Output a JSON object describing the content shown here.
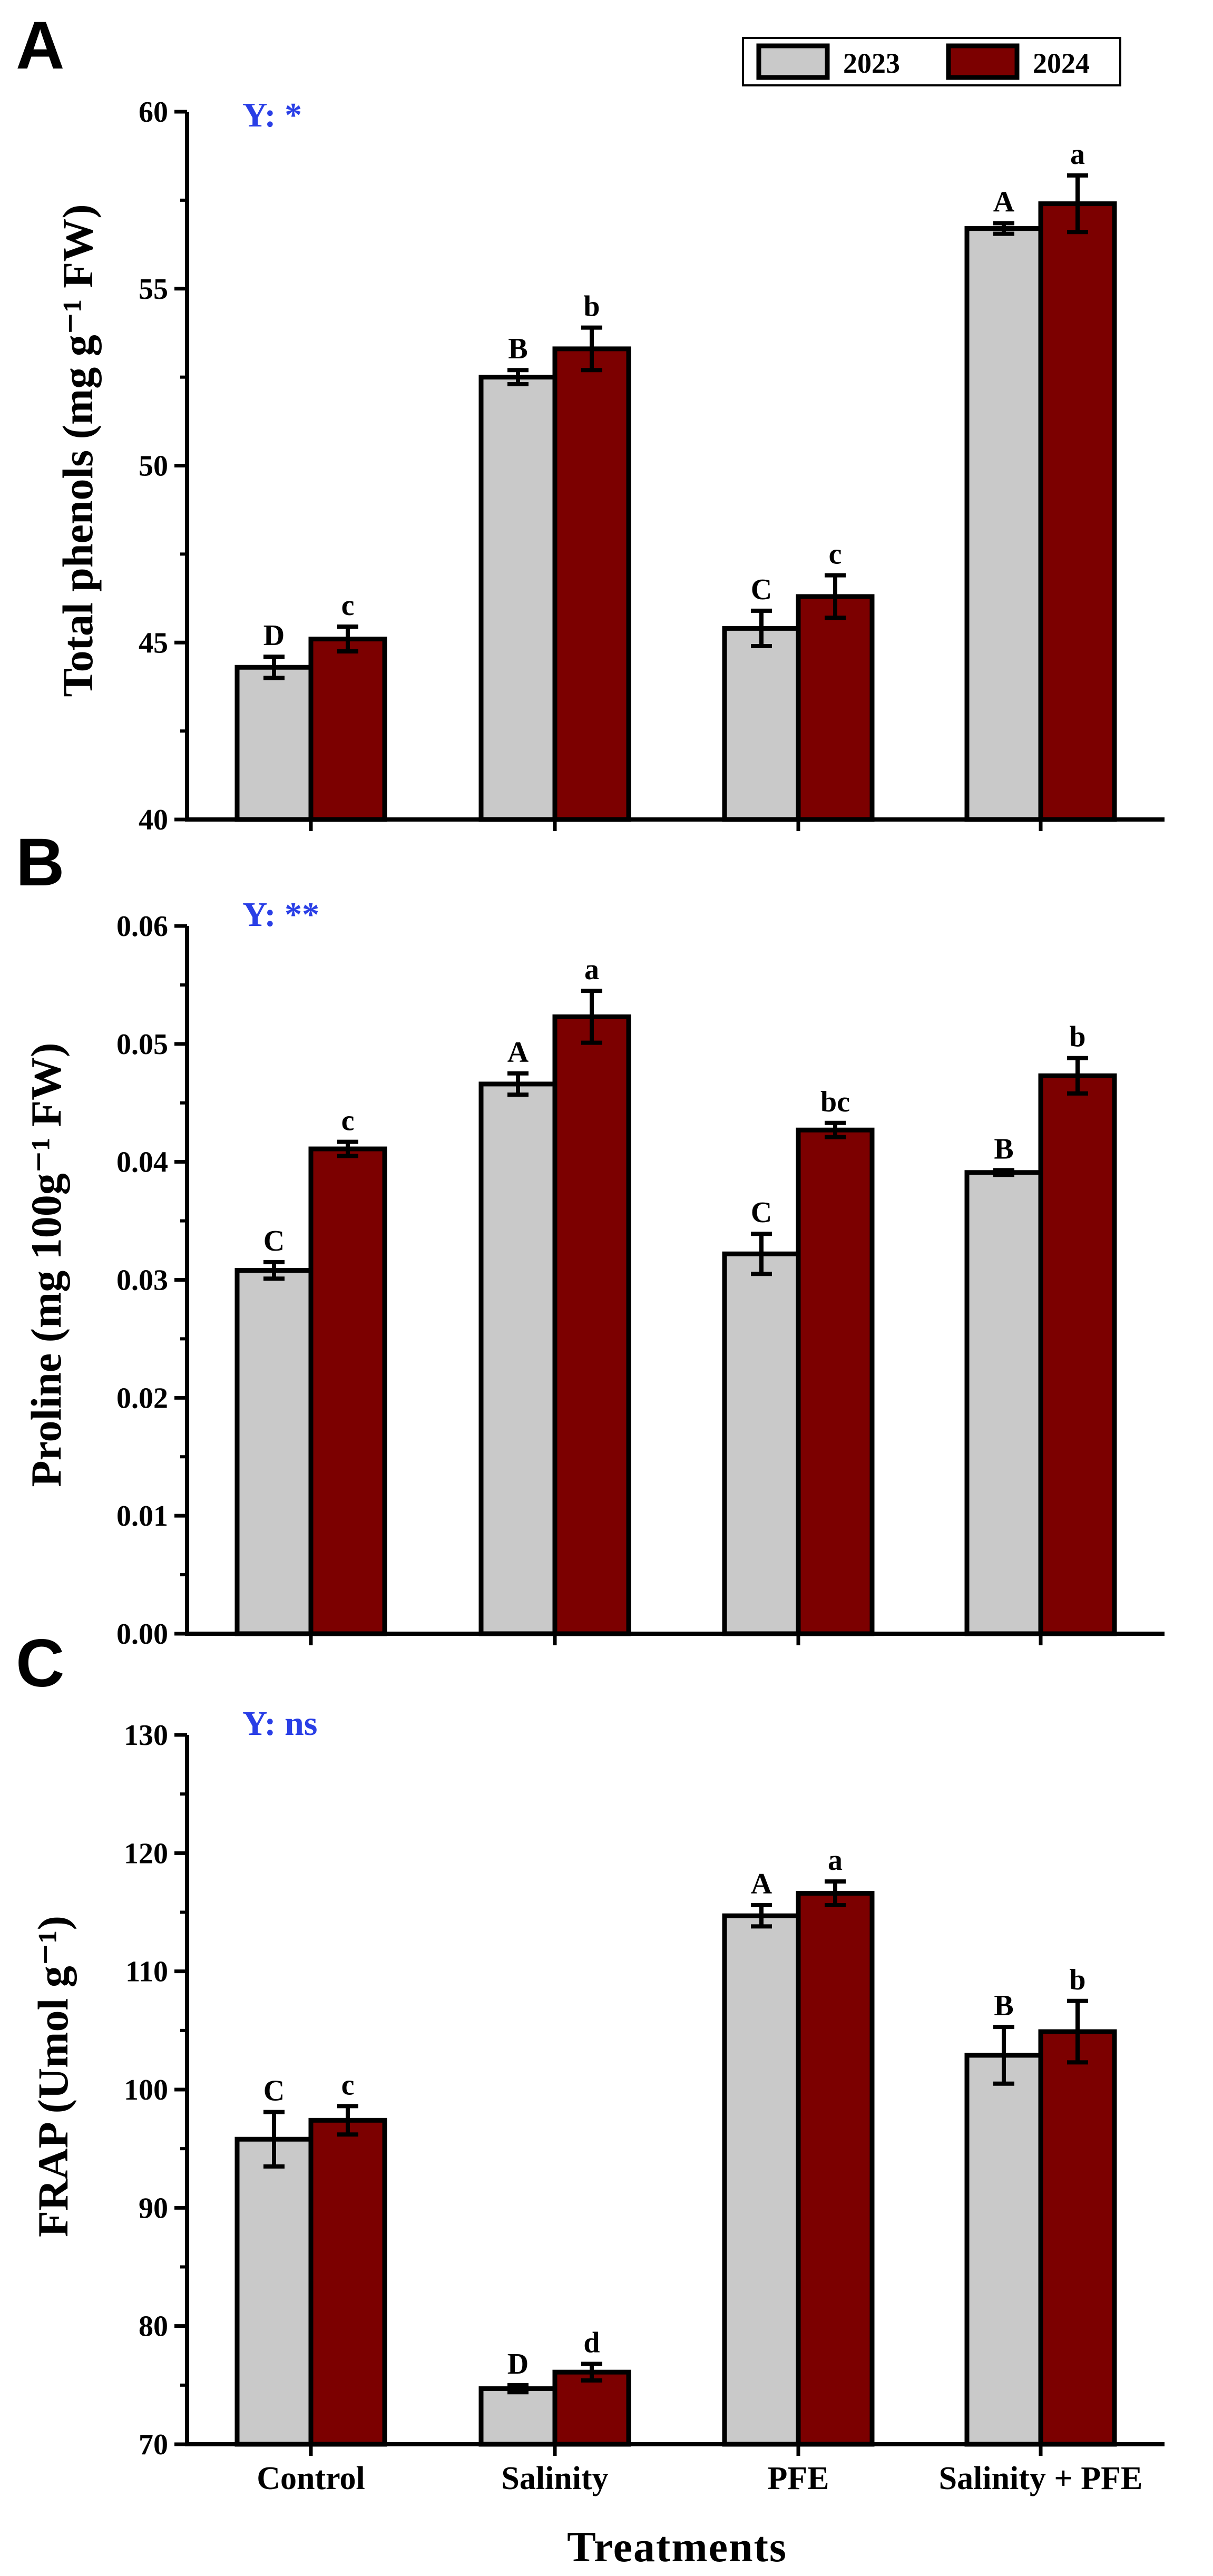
{
  "colors": {
    "s2023": "#c9c9c9",
    "s2024": "#7c0000",
    "annotation": "#2a3fe6"
  },
  "legend": {
    "items": [
      "2023",
      "2024"
    ]
  },
  "xaxis": {
    "title": "Treatments"
  },
  "chart_data": [
    {
      "type": "bar",
      "panel": "A",
      "ylabel": "Total phenols (mg g⁻¹ FW)",
      "annotation": "Y: *",
      "categories": [
        "Control",
        "Salinity",
        "PFE",
        "Salinity + PFE"
      ],
      "ylim": [
        40,
        60
      ],
      "yticks": [
        "40",
        "45",
        "50",
        "55",
        "60"
      ],
      "series": [
        {
          "name": "2023",
          "values": [
            44.3,
            52.5,
            45.4,
            56.7
          ],
          "errors": [
            0.3,
            0.2,
            0.5,
            0.15
          ],
          "letters": [
            "D",
            "B",
            "C",
            "A"
          ]
        },
        {
          "name": "2024",
          "values": [
            45.1,
            53.3,
            46.3,
            57.4
          ],
          "errors": [
            0.35,
            0.6,
            0.6,
            0.8
          ],
          "letters": [
            "c",
            "b",
            "c",
            "a"
          ]
        }
      ]
    },
    {
      "type": "bar",
      "panel": "B",
      "ylabel": "Proline (mg 100g⁻¹ FW)",
      "annotation": "Y: **",
      "categories": [
        "Control",
        "Salinity",
        "PFE",
        "Salinity + PFE"
      ],
      "ylim": [
        0,
        0.06
      ],
      "yticks": [
        "0.00",
        "0.01",
        "0.02",
        "0.03",
        "0.04",
        "0.05",
        "0.06"
      ],
      "series": [
        {
          "name": "2023",
          "values": [
            0.0308,
            0.0466,
            0.0322,
            0.0391
          ],
          "errors": [
            0.0007,
            0.0009,
            0.0017,
            0.0002
          ],
          "letters": [
            "C",
            "A",
            "C",
            "B"
          ]
        },
        {
          "name": "2024",
          "values": [
            0.0411,
            0.0523,
            0.0427,
            0.0473
          ],
          "errors": [
            0.0006,
            0.0022,
            0.0006,
            0.0015
          ],
          "letters": [
            "c",
            "a",
            "bc",
            "b"
          ]
        }
      ]
    },
    {
      "type": "bar",
      "panel": "C",
      "ylabel": "FRAP (Umol g⁻¹)",
      "annotation": "Y: ns",
      "categories": [
        "Control",
        "Salinity",
        "PFE",
        "Salinity + PFE"
      ],
      "ylim": [
        70,
        130
      ],
      "yticks": [
        "70",
        "80",
        "90",
        "100",
        "110",
        "120",
        "130"
      ],
      "series": [
        {
          "name": "2023",
          "values": [
            95.8,
            74.7,
            114.7,
            102.9
          ],
          "errors": [
            2.3,
            0.3,
            0.9,
            2.4
          ],
          "letters": [
            "C",
            "D",
            "A",
            "B"
          ]
        },
        {
          "name": "2024",
          "values": [
            97.4,
            76.1,
            116.6,
            104.9
          ],
          "errors": [
            1.2,
            0.7,
            1.0,
            2.6
          ],
          "letters": [
            "c",
            "d",
            "a",
            "b"
          ]
        }
      ]
    }
  ]
}
